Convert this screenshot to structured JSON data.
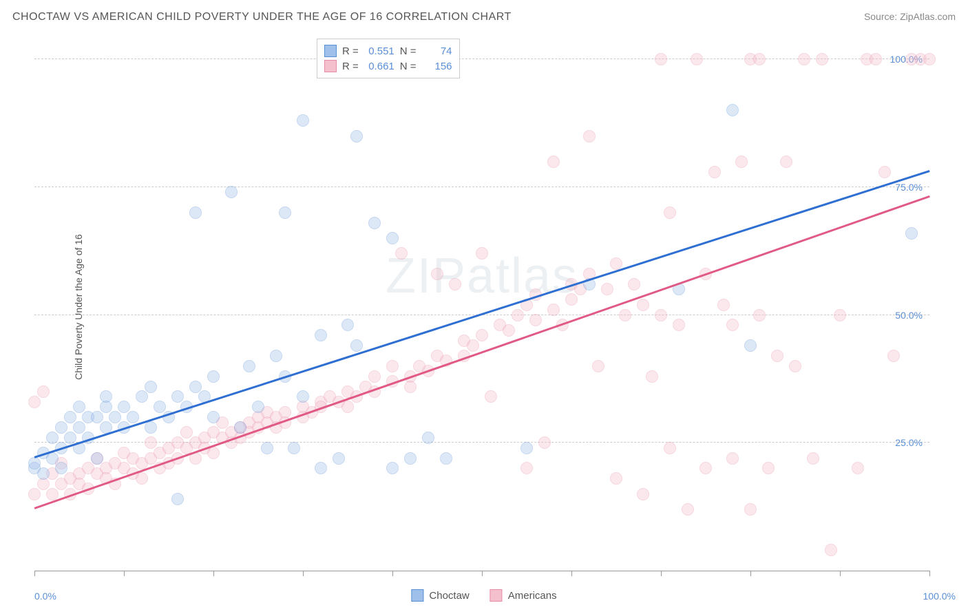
{
  "title": "CHOCTAW VS AMERICAN CHILD POVERTY UNDER THE AGE OF 16 CORRELATION CHART",
  "source_label": "Source: ",
  "source_name": "ZipAtlas.com",
  "y_axis_label": "Child Poverty Under the Age of 16",
  "watermark": "ZIPatlas",
  "chart": {
    "type": "scatter",
    "xlim": [
      0,
      100
    ],
    "ylim": [
      0,
      105
    ],
    "x_ticks": [
      0,
      10,
      20,
      30,
      40,
      50,
      60,
      70,
      80,
      90,
      100
    ],
    "x_tick_labels": {
      "0": "0.0%",
      "100": "100.0%"
    },
    "y_gridlines": [
      25,
      50,
      75,
      100
    ],
    "y_tick_labels": {
      "25": "25.0%",
      "50": "50.0%",
      "75": "75.0%",
      "100": "100.0%"
    },
    "background_color": "#ffffff",
    "grid_color": "#cccccc",
    "axis_color": "#999999",
    "tick_label_color": "#5a8fd6",
    "marker_size": 18,
    "marker_opacity": 0.35,
    "line_width": 2.5
  },
  "series": [
    {
      "name": "Choctaw",
      "fill_color": "#9fc0ea",
      "stroke_color": "#5a8fd6",
      "line_color": "#2e6fd1",
      "trend": {
        "x1": 0,
        "y1": 22,
        "x2": 100,
        "y2": 78
      },
      "R": "0.551",
      "N": "74",
      "points": [
        [
          0,
          20
        ],
        [
          0,
          21
        ],
        [
          1,
          23
        ],
        [
          1,
          19
        ],
        [
          2,
          22
        ],
        [
          2,
          26
        ],
        [
          3,
          24
        ],
        [
          3,
          28
        ],
        [
          3,
          20
        ],
        [
          4,
          30
        ],
        [
          4,
          26
        ],
        [
          5,
          28
        ],
        [
          5,
          24
        ],
        [
          5,
          32
        ],
        [
          6,
          30
        ],
        [
          6,
          26
        ],
        [
          7,
          30
        ],
        [
          7,
          22
        ],
        [
          8,
          32
        ],
        [
          8,
          28
        ],
        [
          8,
          34
        ],
        [
          9,
          30
        ],
        [
          10,
          32
        ],
        [
          10,
          28
        ],
        [
          11,
          30
        ],
        [
          12,
          34
        ],
        [
          13,
          28
        ],
        [
          13,
          36
        ],
        [
          14,
          32
        ],
        [
          15,
          30
        ],
        [
          16,
          34
        ],
        [
          16,
          14
        ],
        [
          17,
          32
        ],
        [
          18,
          36
        ],
        [
          18,
          70
        ],
        [
          19,
          34
        ],
        [
          20,
          38
        ],
        [
          20,
          30
        ],
        [
          22,
          74
        ],
        [
          23,
          28
        ],
        [
          24,
          40
        ],
        [
          25,
          32
        ],
        [
          26,
          24
        ],
        [
          27,
          42
        ],
        [
          28,
          38
        ],
        [
          28,
          70
        ],
        [
          29,
          24
        ],
        [
          30,
          34
        ],
        [
          30,
          88
        ],
        [
          32,
          46
        ],
        [
          32,
          20
        ],
        [
          34,
          22
        ],
        [
          35,
          48
        ],
        [
          36,
          85
        ],
        [
          36,
          44
        ],
        [
          38,
          68
        ],
        [
          40,
          65
        ],
        [
          40,
          20
        ],
        [
          42,
          22
        ],
        [
          44,
          26
        ],
        [
          46,
          22
        ],
        [
          55,
          24
        ],
        [
          62,
          56
        ],
        [
          72,
          55
        ],
        [
          78,
          90
        ],
        [
          80,
          44
        ],
        [
          98,
          66
        ]
      ]
    },
    {
      "name": "Americans",
      "fill_color": "#f4c0ce",
      "stroke_color": "#e88ba5",
      "line_color": "#e05a85",
      "trend": {
        "x1": 0,
        "y1": 12,
        "x2": 100,
        "y2": 73
      },
      "R": "0.661",
      "N": "156",
      "points": [
        [
          0,
          15
        ],
        [
          0,
          33
        ],
        [
          1,
          17
        ],
        [
          1,
          35
        ],
        [
          2,
          15
        ],
        [
          2,
          19
        ],
        [
          3,
          17
        ],
        [
          3,
          21
        ],
        [
          4,
          18
        ],
        [
          4,
          15
        ],
        [
          5,
          19
        ],
        [
          5,
          17
        ],
        [
          6,
          20
        ],
        [
          6,
          16
        ],
        [
          7,
          19
        ],
        [
          7,
          22
        ],
        [
          8,
          20
        ],
        [
          8,
          18
        ],
        [
          9,
          21
        ],
        [
          9,
          17
        ],
        [
          10,
          20
        ],
        [
          10,
          23
        ],
        [
          11,
          19
        ],
        [
          11,
          22
        ],
        [
          12,
          21
        ],
        [
          12,
          18
        ],
        [
          13,
          22
        ],
        [
          13,
          25
        ],
        [
          14,
          20
        ],
        [
          14,
          23
        ],
        [
          15,
          24
        ],
        [
          15,
          21
        ],
        [
          16,
          25
        ],
        [
          16,
          22
        ],
        [
          17,
          24
        ],
        [
          17,
          27
        ],
        [
          18,
          25
        ],
        [
          18,
          22
        ],
        [
          19,
          26
        ],
        [
          19,
          24
        ],
        [
          20,
          27
        ],
        [
          20,
          23
        ],
        [
          21,
          26
        ],
        [
          21,
          29
        ],
        [
          22,
          27
        ],
        [
          22,
          25
        ],
        [
          23,
          28
        ],
        [
          23,
          26
        ],
        [
          24,
          29
        ],
        [
          24,
          27
        ],
        [
          25,
          30
        ],
        [
          25,
          28
        ],
        [
          26,
          29
        ],
        [
          26,
          31
        ],
        [
          27,
          30
        ],
        [
          27,
          28
        ],
        [
          28,
          31
        ],
        [
          28,
          29
        ],
        [
          30,
          32
        ],
        [
          30,
          30
        ],
        [
          31,
          31
        ],
        [
          32,
          33
        ],
        [
          32,
          32
        ],
        [
          33,
          34
        ],
        [
          34,
          33
        ],
        [
          35,
          35
        ],
        [
          35,
          32
        ],
        [
          36,
          34
        ],
        [
          37,
          36
        ],
        [
          38,
          35
        ],
        [
          38,
          38
        ],
        [
          40,
          37
        ],
        [
          40,
          40
        ],
        [
          41,
          62
        ],
        [
          42,
          38
        ],
        [
          42,
          36
        ],
        [
          43,
          40
        ],
        [
          44,
          39
        ],
        [
          45,
          42
        ],
        [
          45,
          58
        ],
        [
          46,
          41
        ],
        [
          47,
          56
        ],
        [
          48,
          45
        ],
        [
          48,
          42
        ],
        [
          49,
          44
        ],
        [
          50,
          62
        ],
        [
          50,
          46
        ],
        [
          51,
          34
        ],
        [
          52,
          48
        ],
        [
          53,
          47
        ],
        [
          54,
          50
        ],
        [
          55,
          20
        ],
        [
          55,
          52
        ],
        [
          56,
          49
        ],
        [
          56,
          54
        ],
        [
          57,
          25
        ],
        [
          58,
          51
        ],
        [
          58,
          80
        ],
        [
          59,
          48
        ],
        [
          60,
          56
        ],
        [
          60,
          53
        ],
        [
          61,
          55
        ],
        [
          62,
          58
        ],
        [
          62,
          85
        ],
        [
          63,
          40
        ],
        [
          64,
          55
        ],
        [
          65,
          18
        ],
        [
          65,
          60
        ],
        [
          66,
          50
        ],
        [
          67,
          56
        ],
        [
          68,
          52
        ],
        [
          68,
          15
        ],
        [
          69,
          38
        ],
        [
          70,
          50
        ],
        [
          70,
          100
        ],
        [
          71,
          24
        ],
        [
          71,
          70
        ],
        [
          72,
          48
        ],
        [
          73,
          12
        ],
        [
          74,
          100
        ],
        [
          75,
          20
        ],
        [
          75,
          58
        ],
        [
          76,
          78
        ],
        [
          77,
          52
        ],
        [
          78,
          48
        ],
        [
          78,
          22
        ],
        [
          79,
          80
        ],
        [
          80,
          100
        ],
        [
          80,
          12
        ],
        [
          81,
          50
        ],
        [
          81,
          100
        ],
        [
          82,
          20
        ],
        [
          83,
          42
        ],
        [
          84,
          80
        ],
        [
          85,
          40
        ],
        [
          86,
          100
        ],
        [
          87,
          22
        ],
        [
          88,
          100
        ],
        [
          89,
          4
        ],
        [
          90,
          50
        ],
        [
          92,
          20
        ],
        [
          93,
          100
        ],
        [
          94,
          100
        ],
        [
          95,
          78
        ],
        [
          96,
          42
        ],
        [
          98,
          100
        ],
        [
          99,
          100
        ],
        [
          100,
          100
        ]
      ]
    }
  ],
  "stats_legend": {
    "R_label": "R =",
    "N_label": "N ="
  },
  "bottom_legend_labels": [
    "Choctaw",
    "Americans"
  ]
}
